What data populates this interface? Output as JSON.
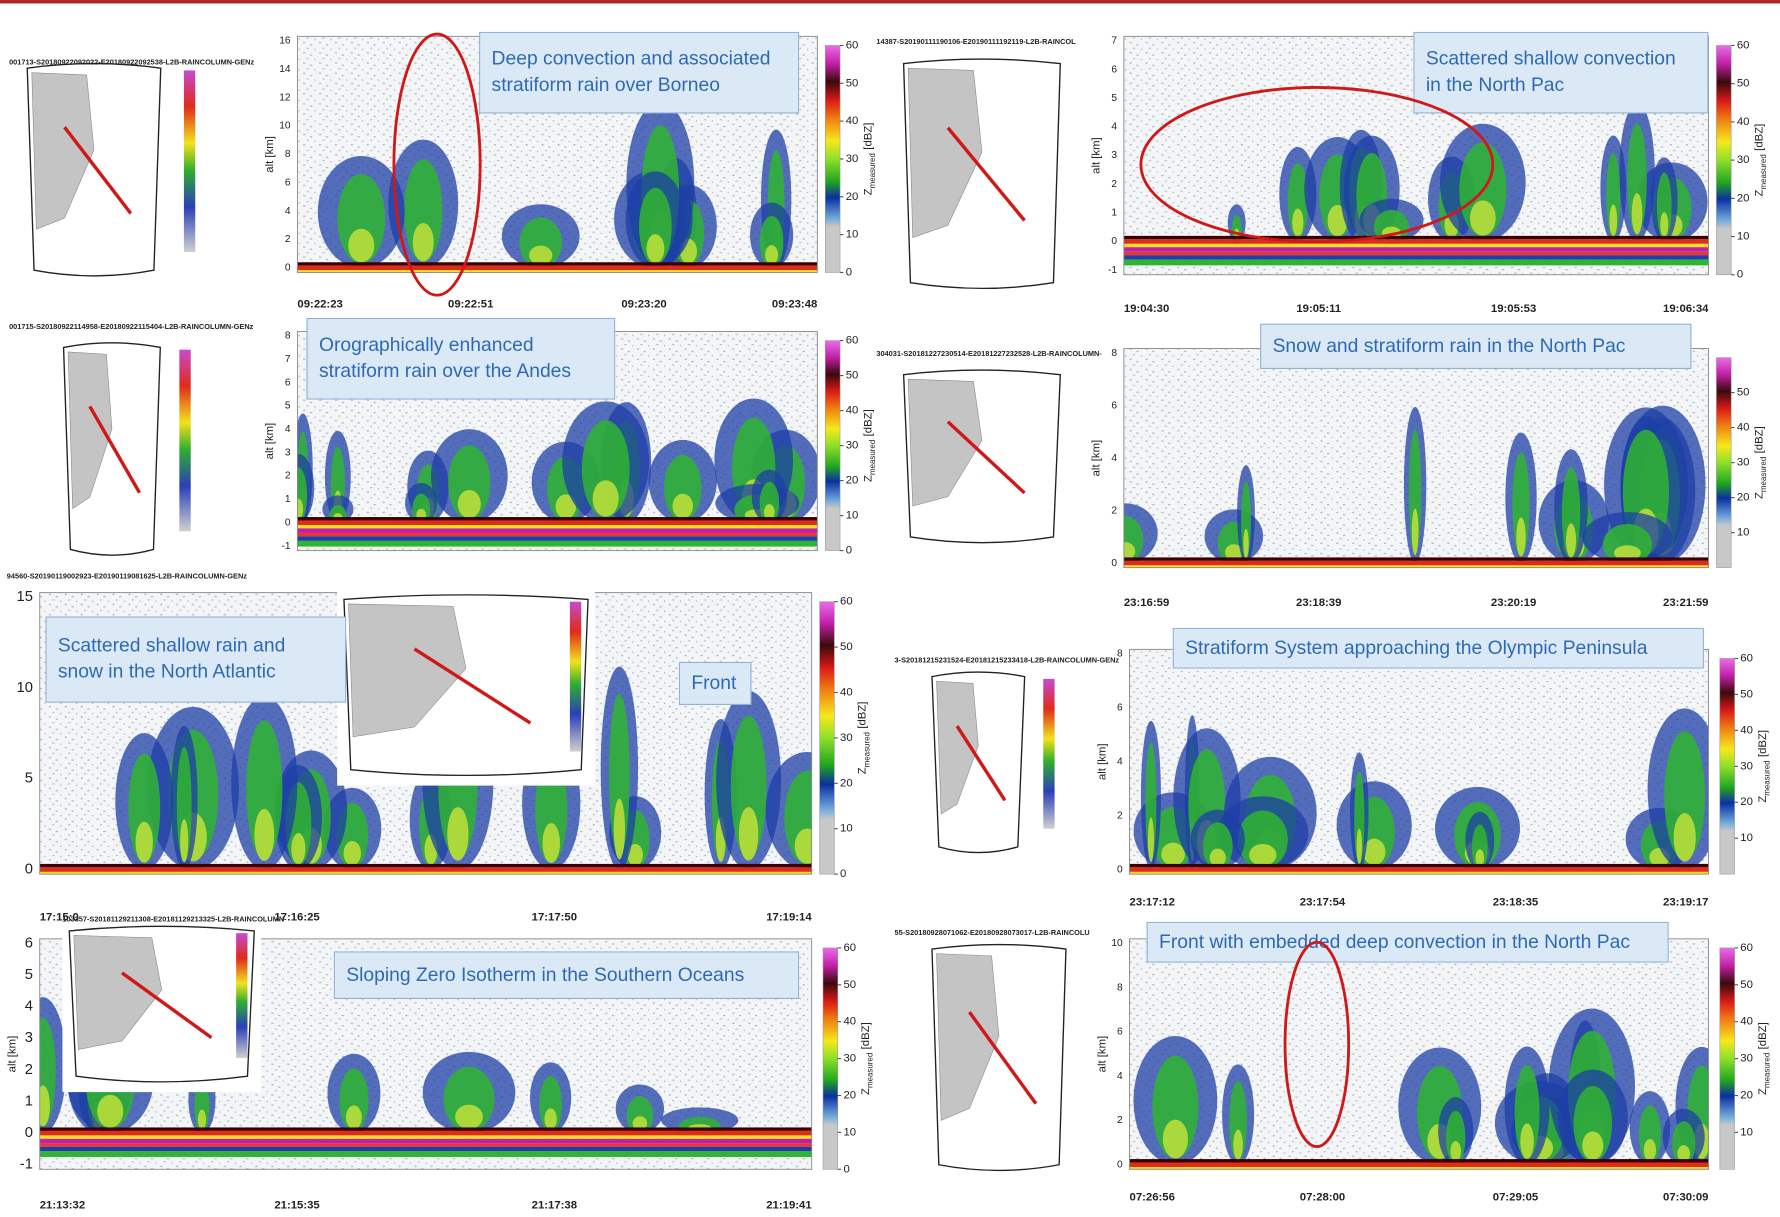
{
  "panels": [
    {
      "file": "001713-S20180922092022-E20180922092538-L2B-RAINCOLUMN-GENz",
      "captions": [
        "Deep convection and associated stratiform rain over Borneo"
      ],
      "ylabel": "alt [km]",
      "yticks": [
        0,
        2,
        4,
        6,
        8,
        10,
        12,
        14,
        16
      ],
      "cbar_ticks": [
        0,
        10,
        20,
        30,
        40,
        50,
        60
      ],
      "times": [
        "09:22:23",
        "09:22:51",
        "09:23:20",
        "09:23:48"
      ]
    },
    {
      "file": "14387-S20190111190106-E20190111192119-L2B-RAINCOL",
      "captions": [
        "Scattered shallow convection in the North Pac"
      ],
      "ylabel": "alt [km]",
      "yticks": [
        -1,
        0,
        1,
        2,
        3,
        4,
        5,
        6,
        7
      ],
      "cbar_ticks": [
        0,
        10,
        20,
        30,
        40,
        50,
        60
      ],
      "times": [
        "19:04:30",
        "19:05:11",
        "19:05:53",
        "19:06:34"
      ]
    },
    {
      "file": "001715-S20180922114958-E20180922115404-L2B-RAINCOLUMN-GENz",
      "captions": [
        "Orographically enhanced stratiform rain over the Andes"
      ],
      "ylabel": "alt [km]",
      "yticks": [
        -1,
        0,
        1,
        2,
        3,
        4,
        5,
        6,
        7,
        8
      ],
      "cbar_ticks": [
        0,
        10,
        20,
        30,
        40,
        50,
        60
      ],
      "times": []
    },
    {
      "file": "304031-S20181227230514-E20181227232528-L2B-RAINCOLUMN-",
      "captions": [
        "Snow and stratiform rain in the North Pac"
      ],
      "ylabel": "alt [km]",
      "yticks": [
        0,
        2,
        4,
        6,
        8
      ],
      "cbar_ticks": [
        10,
        20,
        30,
        40,
        50
      ],
      "times": [
        "23:16:59",
        "23:18:39",
        "23:20:19",
        "23:21:59"
      ]
    },
    {
      "file": "94560-S20190119002923-E20190119081625-L2B-RAINCOLUMN-GENz",
      "captions": [
        "Scattered shallow rain and snow in the North Atlantic",
        "Front"
      ],
      "ylabel": null,
      "yticks": [
        0,
        5,
        10,
        15
      ],
      "cbar_ticks": [
        0,
        10,
        20,
        30,
        40,
        50,
        60
      ],
      "times": [
        "17:15:0",
        "17:16:25",
        "17:17:50",
        "17:19:14"
      ]
    },
    {
      "file": "3-S20181215231524-E20181215233418-L2B-RAINCOLUMN-GENz",
      "captions": [
        "Stratiform System approaching the Olympic Peninsula"
      ],
      "ylabel": "alt [km]",
      "yticks": [
        0,
        2,
        4,
        6,
        8
      ],
      "cbar_ticks": [
        10,
        20,
        30,
        40,
        50,
        60
      ],
      "times": [
        "23:17:12",
        "23:17:54",
        "23:18:35",
        "23:19:17"
      ]
    },
    {
      "file": "103357-S20181129211308-E20181129213325-L2B-RAINCOLUMN-",
      "captions": [
        "Sloping Zero Isotherm in the Southern Oceans"
      ],
      "ylabel": "alt [km]",
      "yticks": [
        -1,
        0,
        1,
        2,
        3,
        4,
        5,
        6
      ],
      "cbar_ticks": [
        0,
        10,
        20,
        30,
        40,
        50,
        60
      ],
      "times": [
        "21:13:32",
        "21:15:35",
        "21:17:38",
        "21:19:41"
      ]
    },
    {
      "file": "55-S20180928071062-E20180928073017-L2B-RAINCOLU",
      "captions": [
        "Front with embedded deep convection in the North Pac"
      ],
      "ylabel": "alt [km]",
      "yticks": [
        0,
        2,
        4,
        6,
        8,
        10
      ],
      "cbar_ticks": [
        10,
        20,
        30,
        40,
        50,
        60
      ],
      "times": [
        "07:26:56",
        "07:28:00",
        "07:29:05",
        "07:30:09"
      ]
    }
  ],
  "cbar_symbol": "Z",
  "cbar_subscript": "measured",
  "cbar_unit": "[dBZ]"
}
